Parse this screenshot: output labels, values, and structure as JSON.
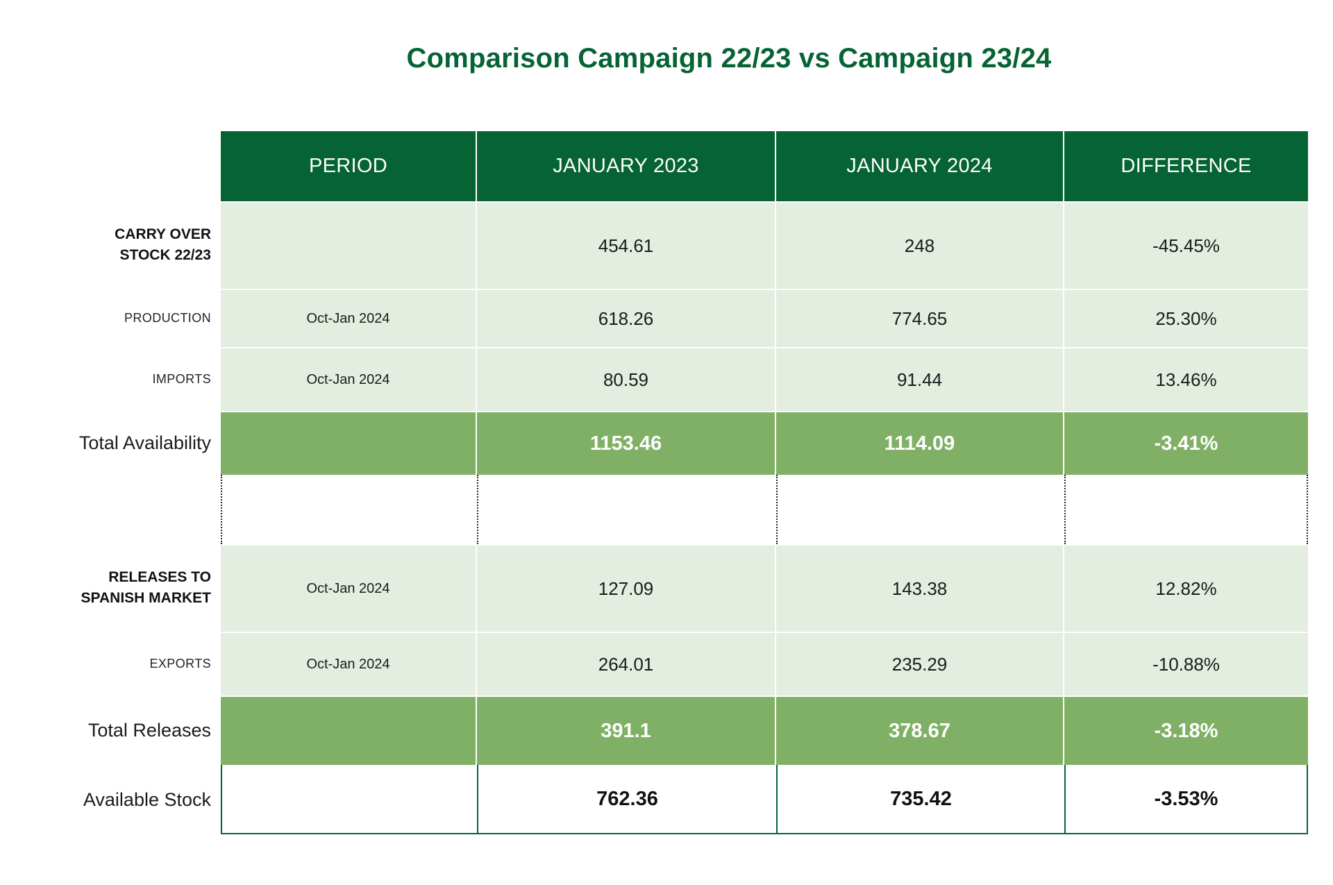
{
  "title": "Comparison Campaign 22/23 vs Campaign 23/24",
  "header": {
    "period": "PERIOD",
    "col_a": "JANUARY 2023",
    "col_b": "JANUARY 2024",
    "col_diff": "DIFFERENCE"
  },
  "rows": {
    "carry_over": {
      "label": "CARRY OVER STOCK 22/23",
      "period": "",
      "a": "454.61",
      "b": "248",
      "diff": "-45.45%"
    },
    "production": {
      "label": "PRODUCTION",
      "period": "Oct-Jan 2024",
      "a": "618.26",
      "b": "774.65",
      "diff": "25.30%"
    },
    "imports": {
      "label": "IMPORTS",
      "period": "Oct-Jan 2024",
      "a": "80.59",
      "b": "91.44",
      "diff": "13.46%"
    },
    "total_availability": {
      "label": "Total Availability",
      "period": "",
      "a": "1153.46",
      "b": "1114.09",
      "diff": "-3.41%"
    },
    "releases_spanish": {
      "label": "RELEASES TO SPANISH MARKET",
      "period": "Oct-Jan 2024",
      "a": "127.09",
      "b": "143.38",
      "diff": "12.82%"
    },
    "exports": {
      "label": "EXPORTS",
      "period": "Oct-Jan 2024",
      "a": "264.01",
      "b": "235.29",
      "diff": "-10.88%"
    },
    "total_releases": {
      "label": "Total Releases",
      "period": "",
      "a": "391.1",
      "b": "378.67",
      "diff": "-3.18%"
    },
    "available_stock": {
      "label": "Available Stock",
      "period": "",
      "a": "762.36",
      "b": "735.42",
      "diff": "-3.53%"
    }
  },
  "colors": {
    "header_green": "#056334",
    "light_green": "#e3ede0",
    "total_green": "#80b065"
  }
}
